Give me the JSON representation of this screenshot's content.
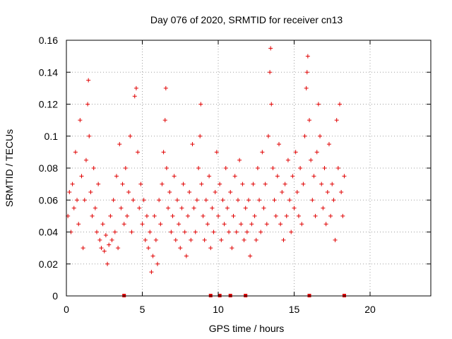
{
  "chart_data": {
    "type": "scatter",
    "title": "Day 076 of 2020, SRMTID for receiver cn13",
    "xlabel": "GPS time / hours",
    "ylabel": "SRMTID / TECUs",
    "xlim": [
      0,
      24
    ],
    "ylim": [
      0,
      0.16
    ],
    "x_ticks": [
      0,
      5,
      10,
      15,
      20
    ],
    "x_tick_labels": [
      "0",
      "5",
      "10",
      "15",
      "20"
    ],
    "y_ticks": [
      0,
      0.02,
      0.04,
      0.06,
      0.08,
      0.1,
      0.12,
      0.14,
      0.16
    ],
    "y_tick_labels": [
      "0",
      "0.02",
      "0.04",
      "0.06",
      "0.08",
      "0.1",
      "0.12",
      "0.14",
      "0.16"
    ],
    "grid": true,
    "marker": "+",
    "series": [
      {
        "name": "SRMTID",
        "color": "#e00000",
        "points": [
          [
            0.1,
            0.05
          ],
          [
            0.2,
            0.065
          ],
          [
            0.3,
            0.04
          ],
          [
            0.4,
            0.07
          ],
          [
            0.5,
            0.055
          ],
          [
            0.6,
            0.09
          ],
          [
            0.7,
            0.06
          ],
          [
            0.8,
            0.045
          ],
          [
            0.9,
            0.11
          ],
          [
            1.0,
            0.075
          ],
          [
            1.1,
            0.03
          ],
          [
            1.2,
            0.06
          ],
          [
            1.3,
            0.085
          ],
          [
            1.4,
            0.12
          ],
          [
            1.45,
            0.135
          ],
          [
            1.5,
            0.1
          ],
          [
            1.6,
            0.065
          ],
          [
            1.7,
            0.05
          ],
          [
            1.8,
            0.08
          ],
          [
            1.9,
            0.055
          ],
          [
            2.0,
            0.04
          ],
          [
            2.1,
            0.07
          ],
          [
            2.2,
            0.035
          ],
          [
            2.3,
            0.03
          ],
          [
            2.4,
            0.045
          ],
          [
            2.5,
            0.028
          ],
          [
            2.6,
            0.038
          ],
          [
            2.7,
            0.02
          ],
          [
            2.8,
            0.032
          ],
          [
            2.9,
            0.05
          ],
          [
            3.0,
            0.035
          ],
          [
            3.1,
            0.06
          ],
          [
            3.2,
            0.04
          ],
          [
            3.3,
            0.075
          ],
          [
            3.4,
            0.03
          ],
          [
            3.5,
            0.095
          ],
          [
            3.6,
            0.055
          ],
          [
            3.7,
            0.07
          ],
          [
            3.8,
            0.045
          ],
          [
            3.9,
            0.08
          ],
          [
            4.0,
            0.05
          ],
          [
            4.1,
            0.065
          ],
          [
            4.2,
            0.1
          ],
          [
            4.3,
            0.04
          ],
          [
            4.4,
            0.06
          ],
          [
            4.5,
            0.125
          ],
          [
            4.6,
            0.13
          ],
          [
            4.7,
            0.09
          ],
          [
            4.8,
            0.055
          ],
          [
            4.9,
            0.07
          ],
          [
            5.0,
            0.045
          ],
          [
            5.1,
            0.06
          ],
          [
            5.2,
            0.035
          ],
          [
            5.3,
            0.05
          ],
          [
            5.4,
            0.03
          ],
          [
            5.5,
            0.04
          ],
          [
            5.6,
            0.015
          ],
          [
            5.7,
            0.025
          ],
          [
            5.8,
            0.05
          ],
          [
            5.9,
            0.035
          ],
          [
            6.0,
            0.02
          ],
          [
            6.1,
            0.06
          ],
          [
            6.2,
            0.045
          ],
          [
            6.3,
            0.07
          ],
          [
            6.4,
            0.09
          ],
          [
            6.5,
            0.11
          ],
          [
            6.55,
            0.13
          ],
          [
            6.6,
            0.08
          ],
          [
            6.7,
            0.055
          ],
          [
            6.8,
            0.065
          ],
          [
            6.9,
            0.04
          ],
          [
            7.0,
            0.05
          ],
          [
            7.1,
            0.075
          ],
          [
            7.2,
            0.035
          ],
          [
            7.3,
            0.06
          ],
          [
            7.4,
            0.045
          ],
          [
            7.5,
            0.03
          ],
          [
            7.6,
            0.055
          ],
          [
            7.7,
            0.07
          ],
          [
            7.8,
            0.04
          ],
          [
            7.9,
            0.025
          ],
          [
            8.0,
            0.05
          ],
          [
            8.1,
            0.065
          ],
          [
            8.2,
            0.035
          ],
          [
            8.3,
            0.095
          ],
          [
            8.4,
            0.055
          ],
          [
            8.5,
            0.04
          ],
          [
            8.6,
            0.06
          ],
          [
            8.7,
            0.08
          ],
          [
            8.8,
            0.1
          ],
          [
            8.85,
            0.12
          ],
          [
            8.9,
            0.07
          ],
          [
            9.0,
            0.05
          ],
          [
            9.1,
            0.035
          ],
          [
            9.2,
            0.06
          ],
          [
            9.3,
            0.045
          ],
          [
            9.4,
            0.075
          ],
          [
            9.5,
            0.03
          ],
          [
            9.6,
            0.055
          ],
          [
            9.7,
            0.04
          ],
          [
            9.8,
            0.065
          ],
          [
            9.9,
            0.09
          ],
          [
            10.0,
            0.05
          ],
          [
            10.1,
            0.07
          ],
          [
            10.2,
            0.035
          ],
          [
            10.3,
            0.06
          ],
          [
            10.4,
            0.045
          ],
          [
            10.5,
            0.08
          ],
          [
            10.6,
            0.055
          ],
          [
            10.7,
            0.04
          ],
          [
            10.8,
            0.065
          ],
          [
            10.9,
            0.03
          ],
          [
            11.0,
            0.05
          ],
          [
            11.1,
            0.075
          ],
          [
            11.2,
            0.04
          ],
          [
            11.3,
            0.06
          ],
          [
            11.4,
            0.085
          ],
          [
            11.5,
            0.045
          ],
          [
            11.6,
            0.07
          ],
          [
            11.7,
            0.035
          ],
          [
            11.8,
            0.055
          ],
          [
            11.9,
            0.04
          ],
          [
            12.0,
            0.06
          ],
          [
            12.1,
            0.025
          ],
          [
            12.2,
            0.045
          ],
          [
            12.3,
            0.07
          ],
          [
            12.4,
            0.05
          ],
          [
            12.5,
            0.035
          ],
          [
            12.6,
            0.08
          ],
          [
            12.7,
            0.06
          ],
          [
            12.8,
            0.04
          ],
          [
            12.9,
            0.09
          ],
          [
            13.0,
            0.055
          ],
          [
            13.1,
            0.07
          ],
          [
            13.2,
            0.045
          ],
          [
            13.3,
            0.1
          ],
          [
            13.4,
            0.14
          ],
          [
            13.45,
            0.155
          ],
          [
            13.5,
            0.12
          ],
          [
            13.6,
            0.08
          ],
          [
            13.7,
            0.06
          ],
          [
            13.8,
            0.05
          ],
          [
            13.9,
            0.075
          ],
          [
            14.0,
            0.095
          ],
          [
            14.1,
            0.045
          ],
          [
            14.2,
            0.065
          ],
          [
            14.3,
            0.035
          ],
          [
            14.4,
            0.07
          ],
          [
            14.5,
            0.05
          ],
          [
            14.6,
            0.085
          ],
          [
            14.7,
            0.06
          ],
          [
            14.8,
            0.04
          ],
          [
            14.9,
            0.075
          ],
          [
            15.0,
            0.055
          ],
          [
            15.1,
            0.09
          ],
          [
            15.2,
            0.065
          ],
          [
            15.3,
            0.05
          ],
          [
            15.4,
            0.08
          ],
          [
            15.5,
            0.045
          ],
          [
            15.6,
            0.07
          ],
          [
            15.7,
            0.1
          ],
          [
            15.8,
            0.13
          ],
          [
            15.85,
            0.14
          ],
          [
            15.9,
            0.15
          ],
          [
            16.0,
            0.11
          ],
          [
            16.1,
            0.085
          ],
          [
            16.2,
            0.06
          ],
          [
            16.3,
            0.075
          ],
          [
            16.4,
            0.05
          ],
          [
            16.5,
            0.09
          ],
          [
            16.6,
            0.12
          ],
          [
            16.7,
            0.1
          ],
          [
            16.8,
            0.07
          ],
          [
            16.9,
            0.055
          ],
          [
            17.0,
            0.08
          ],
          [
            17.1,
            0.045
          ],
          [
            17.2,
            0.065
          ],
          [
            17.3,
            0.095
          ],
          [
            17.4,
            0.05
          ],
          [
            17.5,
            0.07
          ],
          [
            17.6,
            0.06
          ],
          [
            17.7,
            0.035
          ],
          [
            17.8,
            0.11
          ],
          [
            17.9,
            0.08
          ],
          [
            18.0,
            0.12
          ],
          [
            18.1,
            0.065
          ],
          [
            18.2,
            0.05
          ],
          [
            18.3,
            0.075
          ]
        ],
        "zero_points": [
          3.8,
          9.5,
          10.1,
          10.8,
          11.8,
          16.0,
          18.3
        ]
      }
    ]
  }
}
